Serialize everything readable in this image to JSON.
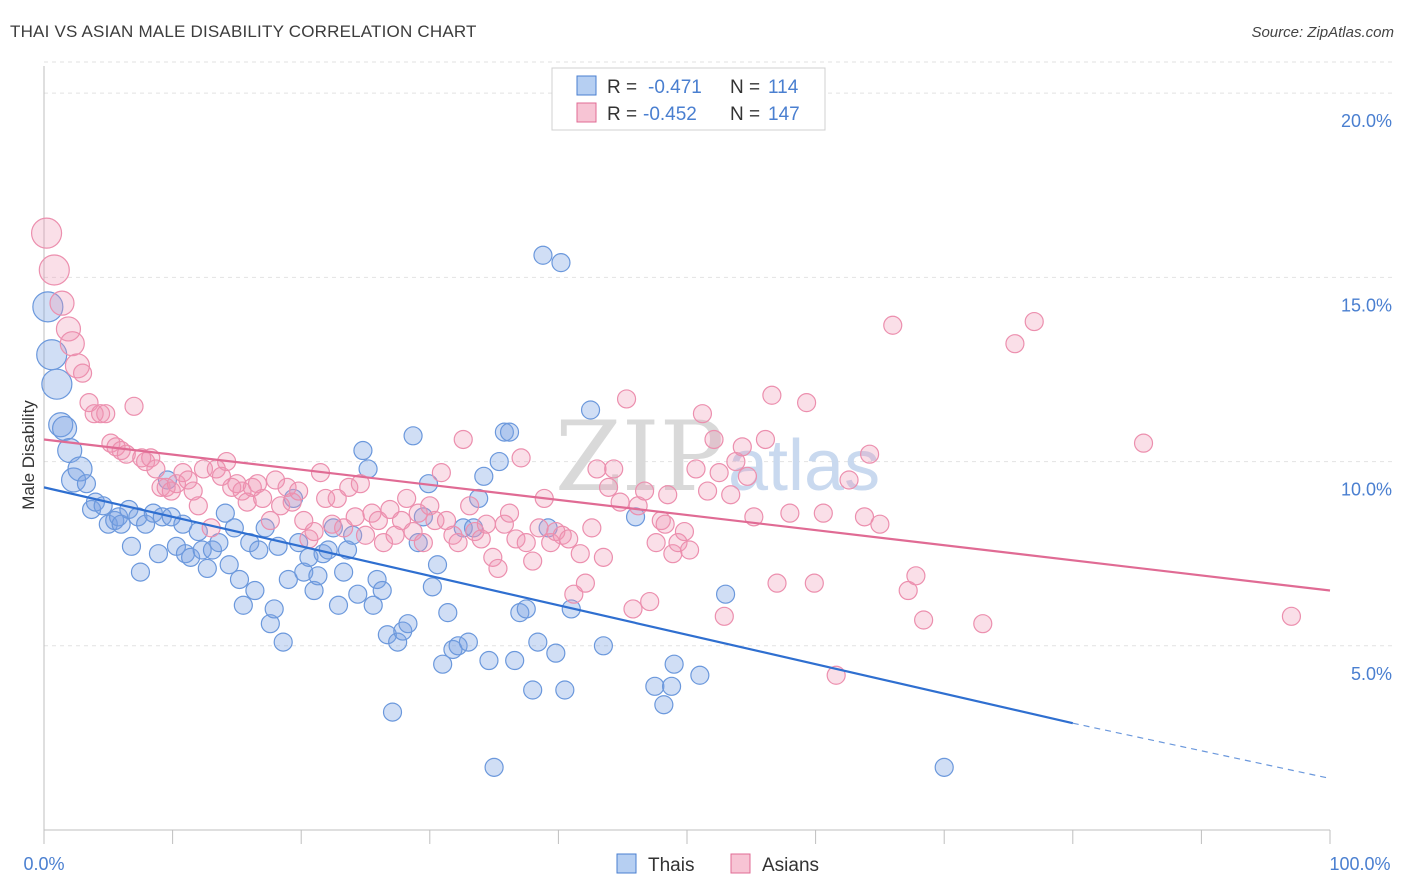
{
  "header": {
    "title": "THAI VS ASIAN MALE DISABILITY CORRELATION CHART",
    "source": "Source: ZipAtlas.com"
  },
  "watermark": {
    "zip": "ZIP",
    "atlas": "atlas"
  },
  "legend": {
    "r_label": "R =",
    "n_label": "N =",
    "rows": [
      {
        "r": "-0.471",
        "n": "114"
      },
      {
        "r": "-0.452",
        "n": "147"
      }
    ]
  },
  "chart_data": {
    "type": "scatter",
    "title": "THAI VS ASIAN MALE DISABILITY CORRELATION CHART",
    "xlabel": "",
    "ylabel": "Male Disability",
    "xlim": [
      0,
      100
    ],
    "ylim": [
      0,
      20.9
    ],
    "x_tick_labels": [
      "0.0%",
      "100.0%"
    ],
    "y_ticks": [
      5,
      10,
      15,
      20
    ],
    "y_tick_labels": [
      "5.0%",
      "10.0%",
      "15.0%",
      "20.0%"
    ],
    "grid": true,
    "legend_position": "top-center",
    "colors": {
      "thais": "#4a7fd0",
      "asians": "#e06b94"
    },
    "series": [
      {
        "name": "Thais",
        "r": -0.471,
        "n": 114,
        "trend": {
          "x0": 0,
          "y0": 9.3,
          "x1": 80,
          "y1": 2.9,
          "dash_to_x": 100,
          "dash_to_y": 1.4
        },
        "points": [
          [
            0.3,
            14.2
          ],
          [
            0.6,
            12.9
          ],
          [
            1.0,
            12.1
          ],
          [
            1.3,
            11.0
          ],
          [
            1.6,
            10.9
          ],
          [
            2.0,
            10.3
          ],
          [
            2.3,
            9.5
          ],
          [
            2.8,
            9.8
          ],
          [
            3.3,
            9.4
          ],
          [
            3.7,
            8.7
          ],
          [
            4.0,
            8.9
          ],
          [
            4.6,
            8.8
          ],
          [
            5.0,
            8.3
          ],
          [
            5.5,
            8.4
          ],
          [
            5.8,
            8.5
          ],
          [
            6.0,
            8.3
          ],
          [
            6.6,
            8.7
          ],
          [
            6.8,
            7.7
          ],
          [
            7.3,
            8.5
          ],
          [
            7.5,
            7.0
          ],
          [
            7.9,
            8.3
          ],
          [
            8.5,
            8.6
          ],
          [
            8.9,
            7.5
          ],
          [
            9.2,
            8.5
          ],
          [
            9.6,
            9.5
          ],
          [
            9.9,
            8.5
          ],
          [
            10.3,
            7.7
          ],
          [
            10.8,
            8.3
          ],
          [
            11.0,
            7.5
          ],
          [
            11.4,
            7.4
          ],
          [
            12.0,
            8.1
          ],
          [
            12.3,
            7.6
          ],
          [
            12.7,
            7.1
          ],
          [
            13.1,
            7.6
          ],
          [
            13.6,
            7.8
          ],
          [
            14.1,
            8.6
          ],
          [
            14.4,
            7.2
          ],
          [
            14.8,
            8.2
          ],
          [
            15.2,
            6.8
          ],
          [
            15.5,
            6.1
          ],
          [
            16.0,
            7.8
          ],
          [
            16.4,
            6.5
          ],
          [
            16.7,
            7.6
          ],
          [
            17.2,
            8.2
          ],
          [
            17.6,
            5.6
          ],
          [
            17.9,
            6.0
          ],
          [
            18.2,
            7.7
          ],
          [
            18.6,
            5.1
          ],
          [
            19.0,
            6.8
          ],
          [
            19.4,
            9.0
          ],
          [
            19.8,
            7.8
          ],
          [
            20.2,
            7.0
          ],
          [
            20.6,
            7.4
          ],
          [
            21.0,
            6.5
          ],
          [
            21.3,
            6.9
          ],
          [
            21.7,
            7.5
          ],
          [
            22.1,
            7.6
          ],
          [
            22.5,
            8.2
          ],
          [
            22.9,
            6.1
          ],
          [
            23.3,
            7.0
          ],
          [
            23.6,
            7.6
          ],
          [
            24.0,
            8.0
          ],
          [
            24.4,
            6.4
          ],
          [
            24.8,
            10.3
          ],
          [
            25.2,
            9.8
          ],
          [
            25.6,
            6.1
          ],
          [
            25.9,
            6.8
          ],
          [
            26.3,
            6.5
          ],
          [
            26.7,
            5.3
          ],
          [
            27.1,
            3.2
          ],
          [
            27.5,
            5.1
          ],
          [
            27.9,
            5.4
          ],
          [
            28.3,
            5.6
          ],
          [
            28.7,
            10.7
          ],
          [
            29.1,
            7.8
          ],
          [
            29.5,
            8.5
          ],
          [
            29.9,
            9.4
          ],
          [
            30.2,
            6.6
          ],
          [
            30.6,
            7.2
          ],
          [
            31.0,
            4.5
          ],
          [
            31.4,
            5.9
          ],
          [
            31.8,
            4.9
          ],
          [
            32.2,
            5.0
          ],
          [
            32.6,
            8.2
          ],
          [
            33.0,
            5.1
          ],
          [
            33.4,
            8.2
          ],
          [
            33.8,
            9.0
          ],
          [
            34.2,
            9.6
          ],
          [
            34.6,
            4.6
          ],
          [
            35.0,
            1.7
          ],
          [
            35.4,
            10.0
          ],
          [
            35.8,
            10.8
          ],
          [
            36.2,
            10.8
          ],
          [
            36.6,
            4.6
          ],
          [
            37.0,
            5.9
          ],
          [
            37.5,
            6.0
          ],
          [
            38.0,
            3.8
          ],
          [
            38.4,
            5.1
          ],
          [
            38.8,
            15.6
          ],
          [
            39.2,
            8.2
          ],
          [
            39.8,
            4.8
          ],
          [
            40.2,
            15.4
          ],
          [
            40.5,
            3.8
          ],
          [
            41.0,
            6.0
          ],
          [
            42.5,
            11.4
          ],
          [
            43.5,
            5.0
          ],
          [
            46.0,
            8.5
          ],
          [
            47.5,
            3.9
          ],
          [
            48.2,
            3.4
          ],
          [
            48.8,
            3.9
          ],
          [
            49.0,
            4.5
          ],
          [
            51.0,
            4.2
          ],
          [
            53.0,
            6.4
          ],
          [
            70.0,
            1.7
          ]
        ]
      },
      {
        "name": "Asians",
        "r": -0.452,
        "n": 147,
        "trend": {
          "x0": 0,
          "y0": 10.6,
          "x1": 100,
          "y1": 6.5
        },
        "points": [
          [
            0.2,
            16.2
          ],
          [
            0.8,
            15.2
          ],
          [
            1.4,
            14.3
          ],
          [
            1.9,
            13.6
          ],
          [
            2.2,
            13.2
          ],
          [
            2.6,
            12.6
          ],
          [
            3.0,
            12.4
          ],
          [
            3.5,
            11.6
          ],
          [
            3.9,
            11.3
          ],
          [
            4.4,
            11.3
          ],
          [
            4.8,
            11.3
          ],
          [
            5.2,
            10.5
          ],
          [
            5.6,
            10.4
          ],
          [
            6.0,
            10.3
          ],
          [
            6.4,
            10.2
          ],
          [
            7.0,
            11.5
          ],
          [
            7.6,
            10.1
          ],
          [
            7.9,
            10.0
          ],
          [
            8.3,
            10.1
          ],
          [
            8.7,
            9.8
          ],
          [
            9.1,
            9.3
          ],
          [
            9.5,
            9.3
          ],
          [
            9.9,
            9.2
          ],
          [
            10.3,
            9.4
          ],
          [
            10.8,
            9.7
          ],
          [
            11.2,
            9.5
          ],
          [
            11.6,
            9.2
          ],
          [
            12.0,
            8.8
          ],
          [
            12.4,
            9.8
          ],
          [
            13.0,
            8.2
          ],
          [
            13.4,
            9.8
          ],
          [
            13.8,
            9.6
          ],
          [
            14.2,
            10.0
          ],
          [
            14.6,
            9.3
          ],
          [
            15.0,
            9.4
          ],
          [
            15.4,
            9.2
          ],
          [
            15.8,
            8.9
          ],
          [
            16.2,
            9.3
          ],
          [
            16.6,
            9.4
          ],
          [
            17.0,
            9.0
          ],
          [
            17.6,
            8.4
          ],
          [
            18.0,
            9.5
          ],
          [
            18.4,
            8.8
          ],
          [
            18.9,
            9.3
          ],
          [
            19.3,
            8.9
          ],
          [
            19.8,
            9.2
          ],
          [
            20.2,
            8.4
          ],
          [
            20.6,
            7.9
          ],
          [
            21.0,
            8.1
          ],
          [
            21.5,
            9.7
          ],
          [
            21.9,
            9.0
          ],
          [
            22.4,
            8.3
          ],
          [
            22.8,
            9.0
          ],
          [
            23.3,
            8.2
          ],
          [
            23.7,
            9.3
          ],
          [
            24.2,
            8.5
          ],
          [
            24.6,
            9.4
          ],
          [
            25.0,
            8.0
          ],
          [
            25.5,
            8.6
          ],
          [
            26.0,
            8.4
          ],
          [
            26.4,
            7.8
          ],
          [
            26.9,
            8.7
          ],
          [
            27.3,
            8.0
          ],
          [
            27.8,
            8.4
          ],
          [
            28.2,
            9.0
          ],
          [
            28.7,
            8.1
          ],
          [
            29.1,
            8.6
          ],
          [
            29.5,
            7.8
          ],
          [
            30.0,
            8.8
          ],
          [
            30.4,
            8.4
          ],
          [
            30.9,
            9.7
          ],
          [
            31.3,
            8.4
          ],
          [
            31.8,
            8.0
          ],
          [
            32.2,
            7.8
          ],
          [
            32.6,
            10.6
          ],
          [
            33.1,
            8.8
          ],
          [
            33.5,
            8.1
          ],
          [
            34.0,
            7.9
          ],
          [
            34.4,
            8.3
          ],
          [
            34.9,
            7.4
          ],
          [
            35.3,
            7.1
          ],
          [
            35.8,
            8.3
          ],
          [
            36.2,
            8.6
          ],
          [
            36.7,
            7.9
          ],
          [
            37.1,
            10.1
          ],
          [
            37.5,
            7.8
          ],
          [
            38.0,
            7.3
          ],
          [
            38.5,
            8.2
          ],
          [
            38.9,
            9.0
          ],
          [
            39.4,
            7.8
          ],
          [
            39.8,
            8.1
          ],
          [
            40.3,
            8.0
          ],
          [
            40.8,
            7.9
          ],
          [
            41.2,
            6.4
          ],
          [
            41.7,
            7.5
          ],
          [
            42.1,
            6.7
          ],
          [
            42.6,
            8.2
          ],
          [
            43.0,
            9.8
          ],
          [
            43.5,
            7.4
          ],
          [
            43.9,
            9.3
          ],
          [
            44.3,
            9.8
          ],
          [
            44.8,
            8.9
          ],
          [
            45.3,
            11.7
          ],
          [
            45.8,
            6.0
          ],
          [
            46.2,
            8.8
          ],
          [
            46.7,
            9.2
          ],
          [
            47.1,
            6.2
          ],
          [
            47.6,
            7.8
          ],
          [
            48.0,
            8.4
          ],
          [
            48.5,
            9.1
          ],
          [
            48.9,
            7.5
          ],
          [
            49.3,
            7.8
          ],
          [
            49.8,
            8.1
          ],
          [
            50.2,
            7.6
          ],
          [
            50.7,
            9.8
          ],
          [
            51.2,
            11.3
          ],
          [
            51.6,
            9.2
          ],
          [
            52.1,
            10.6
          ],
          [
            52.5,
            9.7
          ],
          [
            52.9,
            5.8
          ],
          [
            53.4,
            9.1
          ],
          [
            53.8,
            10.0
          ],
          [
            54.3,
            10.4
          ],
          [
            54.7,
            9.6
          ],
          [
            55.2,
            8.5
          ],
          [
            56.1,
            10.6
          ],
          [
            56.6,
            11.8
          ],
          [
            57.0,
            6.7
          ],
          [
            58.0,
            8.6
          ],
          [
            59.3,
            11.6
          ],
          [
            61.6,
            4.2
          ],
          [
            62.6,
            9.5
          ],
          [
            63.8,
            8.5
          ],
          [
            65.0,
            8.3
          ],
          [
            66.0,
            13.7
          ],
          [
            67.2,
            6.5
          ],
          [
            67.8,
            6.9
          ],
          [
            68.4,
            5.7
          ],
          [
            75.5,
            13.2
          ],
          [
            77.0,
            13.8
          ],
          [
            85.5,
            10.5
          ],
          [
            97.0,
            5.8
          ],
          [
            48.3,
            8.3
          ],
          [
            59.9,
            6.7
          ],
          [
            73.0,
            5.6
          ],
          [
            64.2,
            10.2
          ],
          [
            60.6,
            8.6
          ]
        ]
      }
    ]
  }
}
